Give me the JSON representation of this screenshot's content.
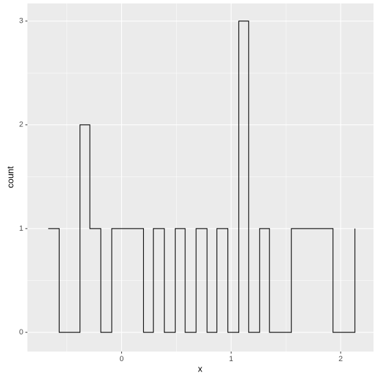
{
  "chart_data": {
    "type": "step",
    "x_label": "x",
    "y_label": "count",
    "x": [
      -0.67,
      -0.57,
      -0.48,
      -0.38,
      -0.29,
      -0.19,
      -0.09,
      0.0,
      0.1,
      0.2,
      0.29,
      0.39,
      0.49,
      0.58,
      0.68,
      0.78,
      0.87,
      0.97,
      1.07,
      1.16,
      1.26,
      1.35,
      1.45,
      1.55,
      1.64,
      1.74,
      1.84,
      1.93,
      2.03,
      2.13
    ],
    "values": [
      1,
      0,
      0,
      2,
      1,
      0,
      1,
      1,
      1,
      0,
      1,
      0,
      1,
      0,
      1,
      0,
      1,
      0,
      3,
      0,
      1,
      0,
      0,
      1,
      1,
      1,
      1,
      0,
      0,
      1
    ],
    "color": "#000000",
    "xlim": [
      -0.86,
      2.3
    ],
    "ylim": [
      -0.185,
      3.17
    ],
    "xticks": [
      0,
      1,
      2
    ],
    "yticks": [
      0,
      1,
      2,
      3
    ],
    "grid": true,
    "panel_background": "#ebebeb"
  }
}
